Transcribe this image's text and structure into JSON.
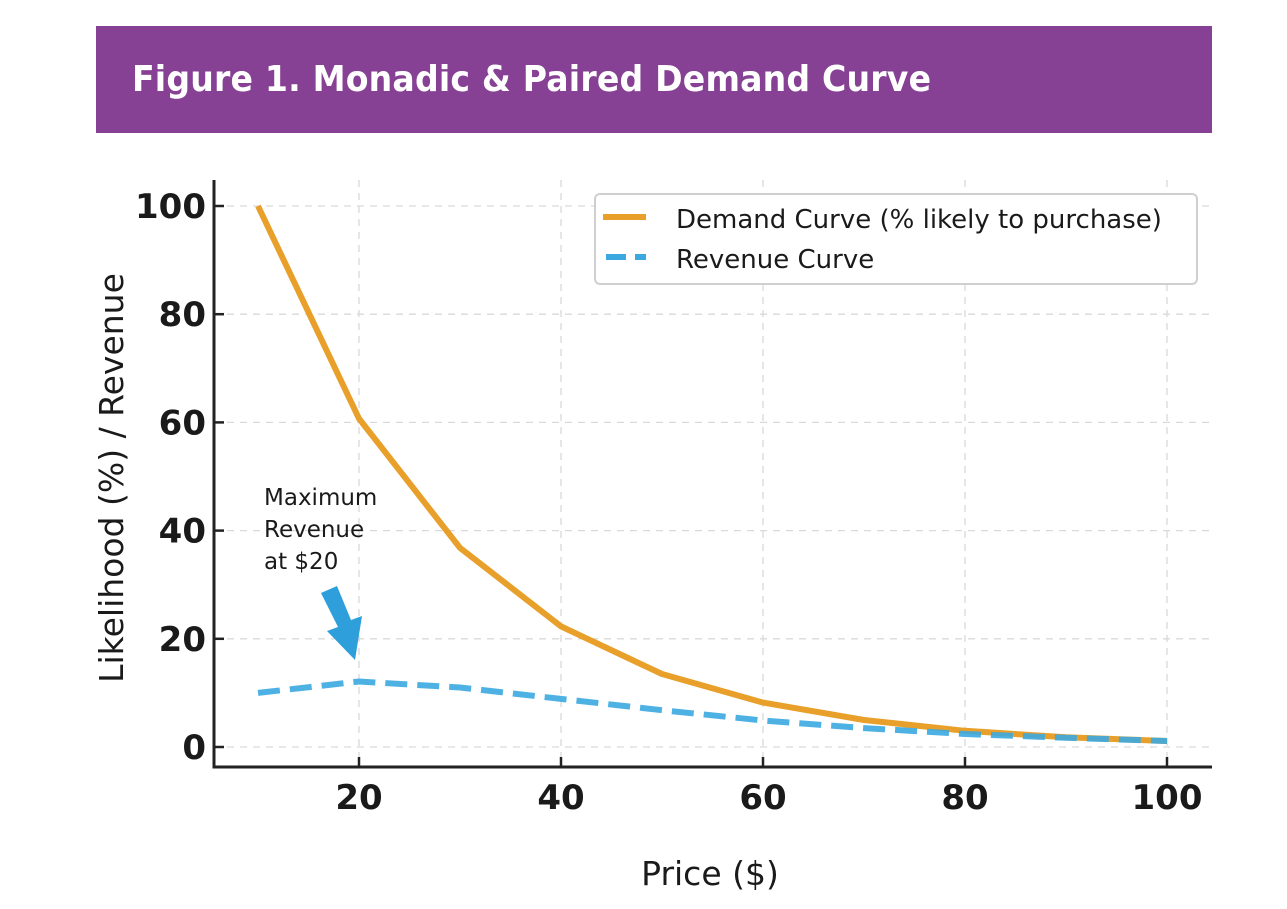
{
  "header": {
    "title": "Figure 1. Monadic & Paired Demand Curve",
    "background_color": "#874194"
  },
  "chart_data": {
    "type": "line",
    "title": "Figure 1. Monadic & Paired Demand Curve",
    "xlabel": "Price ($)",
    "ylabel": "Likelihood (%) / Revenue",
    "x": [
      10,
      20,
      30,
      40,
      50,
      60,
      70,
      80,
      90,
      100
    ],
    "series": [
      {
        "name": "Demand Curve (% likely to purchase)",
        "values": [
          100,
          60.7,
          36.8,
          22.3,
          13.5,
          8.2,
          5.0,
          3.0,
          1.8,
          1.1
        ],
        "color": "#E8A02A",
        "style": "solid"
      },
      {
        "name": "Revenue Curve",
        "values": [
          10.0,
          12.1,
          11.0,
          8.9,
          6.8,
          4.9,
          3.5,
          2.4,
          1.7,
          1.1
        ],
        "color": "#3BA8E0",
        "style": "dashed"
      }
    ],
    "xlim": [
      7,
      105
    ],
    "ylim": [
      -4,
      105
    ],
    "xticks": [
      20,
      40,
      60,
      80,
      100
    ],
    "yticks": [
      0,
      20,
      40,
      60,
      80,
      100
    ],
    "xtick_labels": [
      "20",
      "40",
      "60",
      "80",
      "100"
    ],
    "ytick_labels": [
      "0",
      "20",
      "40",
      "60",
      "80",
      "100"
    ],
    "grid": true,
    "legend_position": "top-right",
    "annotation": {
      "lines": [
        "Maximum",
        "Revenue",
        "at $20"
      ],
      "points_to_x": 20,
      "arrow_color": "#2E9FDB"
    }
  }
}
